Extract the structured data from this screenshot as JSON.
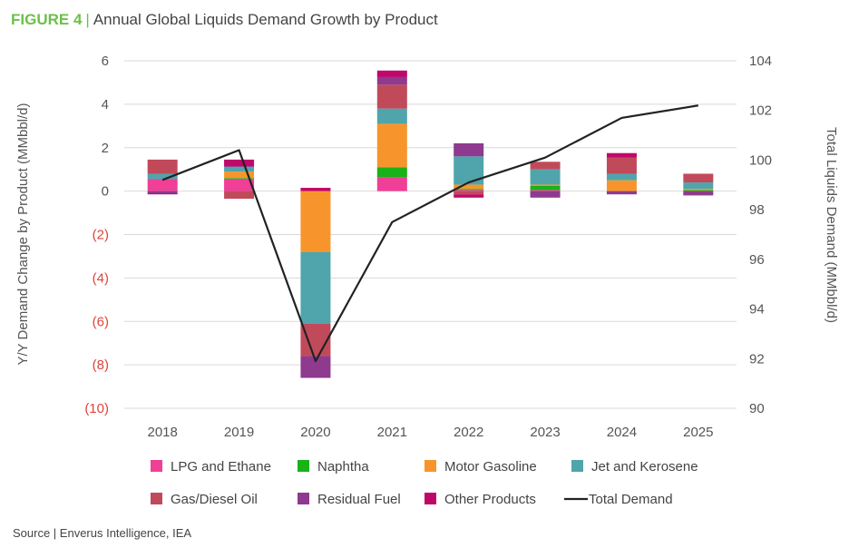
{
  "figure": {
    "label": "FIGURE 4",
    "separator": "|",
    "title": "Annual Global Liquids Demand Growth by Product"
  },
  "source": "Source | Enverus Intelligence, IEA",
  "colors": {
    "negative_tick": "#e0443a",
    "axis_text": "#555555",
    "grid": "#d9d9d9",
    "total_line": "#222222"
  },
  "chart_data": {
    "type": "bar",
    "stacked": true,
    "categories": [
      "2018",
      "2019",
      "2020",
      "2021",
      "2022",
      "2023",
      "2024",
      "2025"
    ],
    "ylabel": "Y/Y Demand Change by Product (MMbbl/d)",
    "y2label": "Total Liquids Demand (MMbbl/d)",
    "ylim": [
      -10,
      6
    ],
    "y2lim": [
      90,
      104
    ],
    "yticks": [
      6,
      4,
      2,
      0,
      -2,
      -4,
      -6,
      -8,
      -10
    ],
    "ytick_labels": [
      "6",
      "4",
      "2",
      "0",
      "(2)",
      "(4)",
      "(6)",
      "(8)",
      "(10)"
    ],
    "y2ticks": [
      104,
      102,
      100,
      98,
      96,
      94,
      92,
      90
    ],
    "y2tick_labels": [
      "104",
      "102",
      "100",
      "98",
      "96",
      "94",
      "92",
      "90"
    ],
    "grid": true,
    "legend_position": "bottom",
    "series": [
      {
        "name": "LPG and Ethane",
        "color": "#ef3f96",
        "values": [
          0.55,
          0.55,
          0,
          0.65,
          0.05,
          0.05,
          0.0,
          0.0
        ]
      },
      {
        "name": "Naphtha",
        "color": "#19b219",
        "values": [
          0.0,
          0.05,
          0,
          0.45,
          0.05,
          0.2,
          0.0,
          0.05
        ]
      },
      {
        "name": "Motor Gasoline",
        "color": "#f7952c",
        "values": [
          0.0,
          0.3,
          -2.8,
          2.0,
          0.2,
          0.05,
          0.5,
          0.05
        ]
      },
      {
        "name": "Jet and Kerosene",
        "color": "#4fa5ab",
        "values": [
          0.25,
          0.2,
          -3.3,
          0.7,
          1.3,
          0.7,
          0.3,
          0.3
        ]
      },
      {
        "name": "Gas/Diesel Oil",
        "color": "#c14a5a",
        "values": [
          0.65,
          -0.35,
          -1.5,
          1.1,
          -0.15,
          0.35,
          0.75,
          0.4
        ]
      },
      {
        "name": "Residual Fuel",
        "color": "#8e3a8e",
        "values": [
          -0.1,
          0.05,
          -1.0,
          0.35,
          0.6,
          -0.3,
          -0.15,
          -0.2
        ]
      },
      {
        "name": "Other Products",
        "color": "#c0076a",
        "values": [
          -0.05,
          0.3,
          0.15,
          0.3,
          -0.15,
          0.0,
          0.2,
          0.0
        ]
      }
    ],
    "total_demand": {
      "name": "Total Demand",
      "color": "#222222",
      "values": [
        99.2,
        100.4,
        91.9,
        97.5,
        99.1,
        100.1,
        101.7,
        102.2
      ]
    }
  }
}
